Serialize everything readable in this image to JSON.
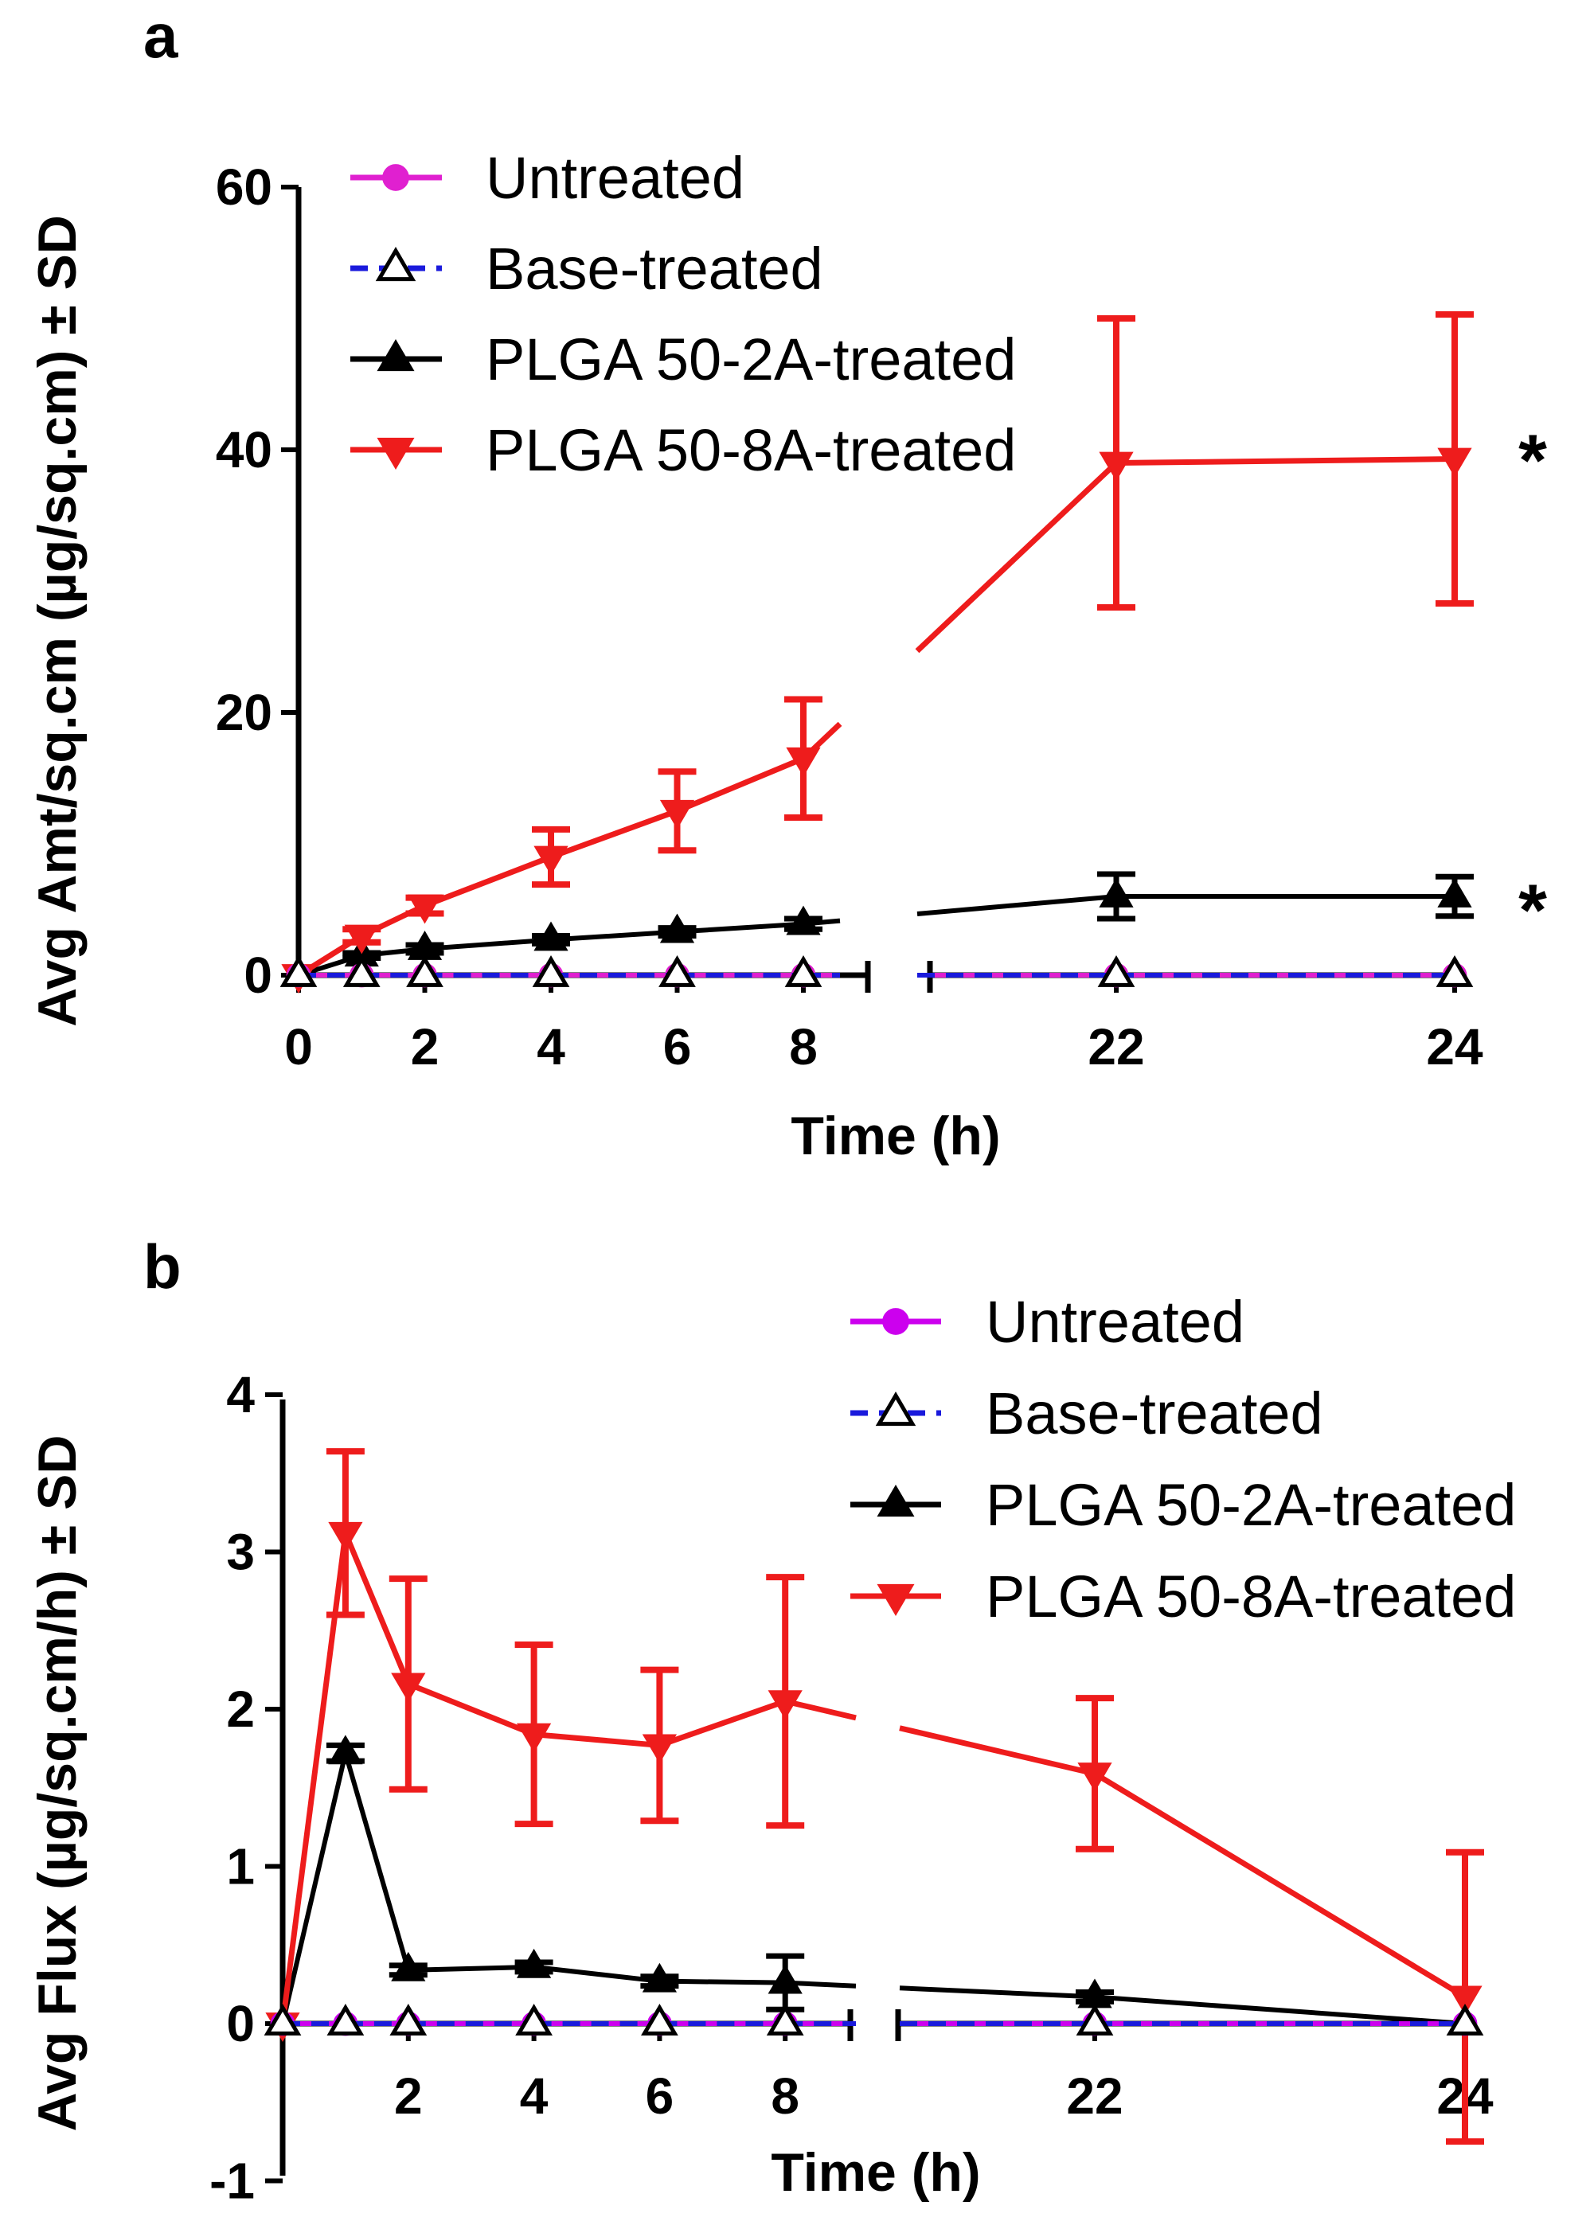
{
  "chart_data": [
    {
      "panel_label": "a",
      "type": "line",
      "xlabel": "Time (h)",
      "ylabel": "Avg Amt/sq.cm (µg/sq.cm) ± SD",
      "ylim": [
        0,
        60
      ],
      "yticks": [
        "0",
        "20",
        "40",
        "60"
      ],
      "xticks": [
        "0",
        "2",
        "4",
        "6",
        "8",
        "22",
        "24"
      ],
      "axis_break": "between 8 and 22 h",
      "legend_position": "top-left",
      "series": [
        {
          "name": "Untreated",
          "color": "#e020d0",
          "marker": "circle",
          "line": "solid",
          "x": [
            0,
            1,
            2,
            4,
            6,
            8,
            22,
            24
          ],
          "y": [
            0,
            0,
            0,
            0,
            0,
            0,
            0,
            0
          ],
          "sd": [
            0,
            0,
            0,
            0,
            0,
            0,
            0,
            0
          ]
        },
        {
          "name": "Base-treated",
          "color": "#1a1adc",
          "marker": "triangle-up-open",
          "line": "dashed",
          "x": [
            0,
            1,
            2,
            4,
            6,
            8,
            22,
            24
          ],
          "y": [
            0,
            0,
            0,
            0,
            0,
            0,
            0,
            0
          ],
          "sd": [
            0,
            0,
            0,
            0,
            0,
            0,
            0,
            0
          ]
        },
        {
          "name": "PLGA 50-2A-treated",
          "color": "#000000",
          "marker": "triangle-up",
          "line": "solid",
          "x": [
            0,
            1,
            2,
            4,
            6,
            8,
            22,
            24
          ],
          "y": [
            0,
            1.5,
            2.0,
            2.7,
            3.3,
            3.9,
            6.0,
            6.0
          ],
          "sd": [
            0,
            0.2,
            0.3,
            0.3,
            0.3,
            0.4,
            1.7,
            1.5
          ]
        },
        {
          "name": "PLGA 50-8A-treated",
          "color": "#ee1c1c",
          "marker": "triangle-down",
          "line": "solid",
          "x": [
            0,
            1,
            2,
            4,
            6,
            8,
            22,
            24
          ],
          "y": [
            0,
            3.0,
            5.3,
            9.0,
            12.5,
            16.5,
            39.0,
            39.3
          ],
          "sd": [
            0,
            0.5,
            0.6,
            2.1,
            3.0,
            4.5,
            11.0,
            11.0
          ]
        }
      ],
      "annotations": [
        {
          "text": "*",
          "target": "PLGA 50-8A-treated",
          "at_x": 24
        },
        {
          "text": "*",
          "target": "PLGA 50-2A-treated",
          "at_x": 24
        }
      ]
    },
    {
      "panel_label": "b",
      "type": "line",
      "xlabel": "Time (h)",
      "ylabel": "Avg Flux (µg/sq.cm/h) ± SD",
      "ylim": [
        -1,
        4
      ],
      "yticks": [
        "-1",
        "0",
        "1",
        "2",
        "3",
        "4"
      ],
      "xticks": [
        "2",
        "4",
        "6",
        "8",
        "22",
        "24"
      ],
      "axis_break": "between 8 and 22 h",
      "legend_position": "top-right",
      "series": [
        {
          "name": "Untreated",
          "color": "#cc00ee",
          "marker": "circle",
          "line": "solid",
          "x": [
            0,
            1,
            2,
            4,
            6,
            8,
            22,
            24
          ],
          "y": [
            0,
            0,
            0,
            0,
            0,
            0,
            0,
            0
          ],
          "sd": [
            0,
            0,
            0,
            0,
            0,
            0,
            0,
            0
          ]
        },
        {
          "name": "Base-treated",
          "color": "#1a1adc",
          "marker": "triangle-up-open",
          "line": "dashed",
          "x": [
            0,
            1,
            2,
            4,
            6,
            8,
            22,
            24
          ],
          "y": [
            0,
            0,
            0,
            0,
            0,
            0,
            0,
            0
          ],
          "sd": [
            0,
            0,
            0,
            0,
            0,
            0,
            0,
            0
          ]
        },
        {
          "name": "PLGA 50-2A-treated",
          "color": "#000000",
          "marker": "triangle-up",
          "line": "solid",
          "x": [
            0,
            1,
            2,
            4,
            6,
            8,
            22,
            24
          ],
          "y": [
            0,
            1.72,
            0.34,
            0.36,
            0.27,
            0.26,
            0.17,
            0.0
          ],
          "sd": [
            0,
            0.05,
            0.03,
            0.03,
            0.03,
            0.17,
            0.03,
            0.01
          ]
        },
        {
          "name": "PLGA 50-8A-treated",
          "color": "#ee1c1c",
          "marker": "triangle-down",
          "line": "solid",
          "x": [
            0,
            1,
            2,
            4,
            6,
            8,
            22,
            24
          ],
          "y": [
            0,
            3.12,
            2.16,
            1.84,
            1.77,
            2.05,
            1.59,
            0.17
          ],
          "sd": [
            0,
            0.52,
            0.67,
            0.57,
            0.48,
            0.79,
            0.48,
            0.92
          ]
        }
      ],
      "annotations": []
    }
  ]
}
